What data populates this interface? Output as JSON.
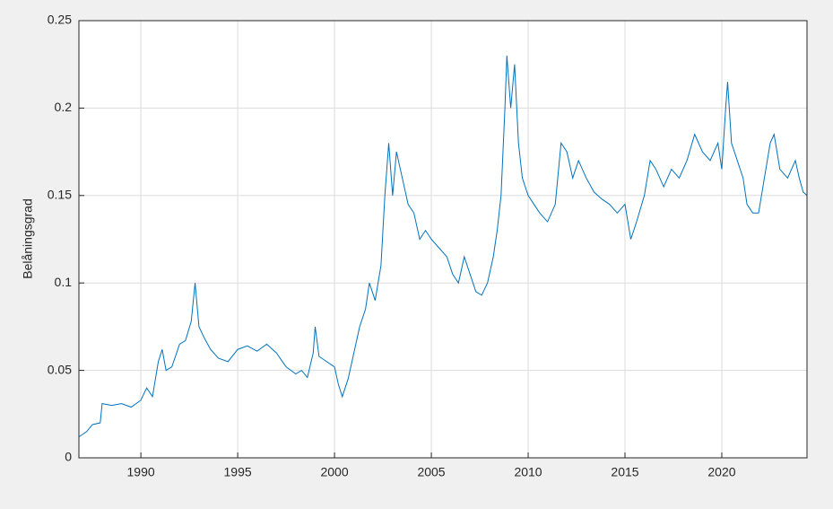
{
  "chart_data": {
    "type": "line",
    "ylabel": "Belåningsgrad",
    "x": [
      1986.8,
      1987.2,
      1987.5,
      1987.9,
      1988.0,
      1988.5,
      1989.0,
      1989.5,
      1990.0,
      1990.3,
      1990.6,
      1990.9,
      1991.1,
      1991.3,
      1991.6,
      1992.0,
      1992.3,
      1992.6,
      1992.8,
      1993.0,
      1993.3,
      1993.6,
      1994.0,
      1994.5,
      1995.0,
      1995.5,
      1996.0,
      1996.5,
      1997.0,
      1997.5,
      1998.0,
      1998.3,
      1998.6,
      1998.9,
      1999.0,
      1999.2,
      1999.6,
      2000.0,
      2000.2,
      2000.4,
      2000.7,
      2001.0,
      2001.3,
      2001.6,
      2001.8,
      2002.1,
      2002.4,
      2002.6,
      2002.8,
      2003.0,
      2003.2,
      2003.5,
      2003.8,
      2004.1,
      2004.4,
      2004.7,
      2005.0,
      2005.4,
      2005.8,
      2006.1,
      2006.4,
      2006.7,
      2007.0,
      2007.3,
      2007.6,
      2007.9,
      2008.2,
      2008.4,
      2008.6,
      2008.8,
      2008.9,
      2009.1,
      2009.3,
      2009.5,
      2009.7,
      2010.0,
      2010.3,
      2010.6,
      2011.0,
      2011.4,
      2011.7,
      2012.0,
      2012.3,
      2012.6,
      2013.0,
      2013.4,
      2013.8,
      2014.2,
      2014.6,
      2015.0,
      2015.3,
      2015.6,
      2016.0,
      2016.3,
      2016.6,
      2017.0,
      2017.4,
      2017.8,
      2018.2,
      2018.6,
      2019.0,
      2019.4,
      2019.8,
      2020.0,
      2020.2,
      2020.3,
      2020.5,
      2020.8,
      2021.1,
      2021.3,
      2021.6,
      2021.9,
      2022.2,
      2022.5,
      2022.7,
      2023.0,
      2023.4,
      2023.8,
      2024.0,
      2024.2,
      2024.4
    ],
    "values": [
      0.012,
      0.015,
      0.019,
      0.02,
      0.031,
      0.03,
      0.031,
      0.029,
      0.033,
      0.04,
      0.035,
      0.055,
      0.062,
      0.05,
      0.052,
      0.065,
      0.067,
      0.078,
      0.1,
      0.075,
      0.068,
      0.062,
      0.057,
      0.055,
      0.062,
      0.064,
      0.061,
      0.065,
      0.06,
      0.052,
      0.048,
      0.05,
      0.046,
      0.06,
      0.075,
      0.058,
      0.055,
      0.052,
      0.042,
      0.035,
      0.045,
      0.06,
      0.075,
      0.085,
      0.1,
      0.09,
      0.11,
      0.15,
      0.18,
      0.15,
      0.175,
      0.16,
      0.145,
      0.14,
      0.125,
      0.13,
      0.125,
      0.12,
      0.115,
      0.105,
      0.1,
      0.115,
      0.105,
      0.095,
      0.093,
      0.1,
      0.115,
      0.13,
      0.15,
      0.2,
      0.23,
      0.2,
      0.225,
      0.18,
      0.16,
      0.15,
      0.145,
      0.14,
      0.135,
      0.145,
      0.18,
      0.175,
      0.16,
      0.17,
      0.16,
      0.152,
      0.148,
      0.145,
      0.14,
      0.145,
      0.125,
      0.135,
      0.15,
      0.17,
      0.165,
      0.155,
      0.165,
      0.16,
      0.17,
      0.185,
      0.175,
      0.17,
      0.18,
      0.165,
      0.2,
      0.215,
      0.18,
      0.17,
      0.16,
      0.145,
      0.14,
      0.14,
      0.16,
      0.18,
      0.185,
      0.165,
      0.16,
      0.17,
      0.16,
      0.152,
      0.15
    ],
    "color": "#0072bd",
    "xlim": [
      1986.8,
      2024.4
    ],
    "xticks": [
      1990,
      1995,
      2000,
      2005,
      2010,
      2015,
      2020
    ],
    "ylim": [
      0,
      0.25
    ],
    "yticks": [
      0,
      0.05,
      0.1,
      0.15,
      0.2,
      0.25
    ],
    "grid": true
  }
}
